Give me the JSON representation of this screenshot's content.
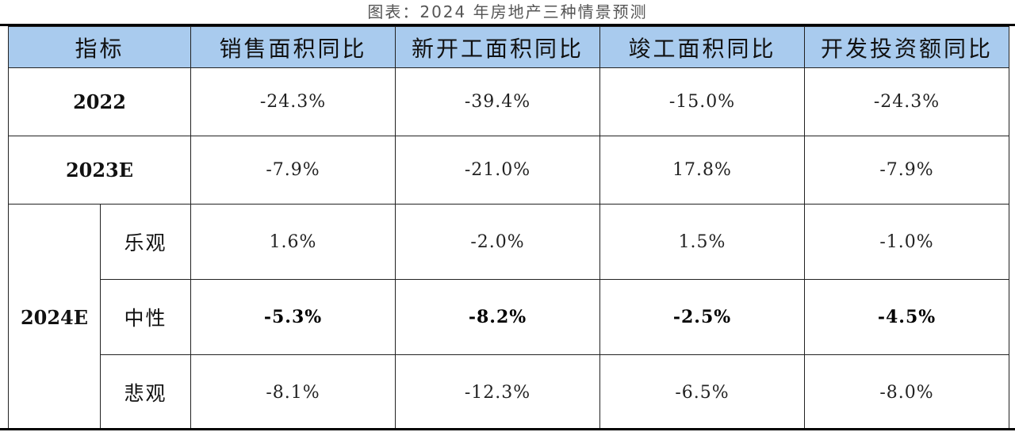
{
  "caption": "图表：2024 年房地产三种情景预测",
  "header": {
    "indicator": "指标",
    "columns": [
      "销售面积同比",
      "新开工面积同比",
      "竣工面积同比",
      "开发投资额同比"
    ]
  },
  "rows": [
    {
      "year": "2022",
      "values": [
        "-24.3%",
        "-39.4%",
        "-15.0%",
        "-24.3%"
      ]
    },
    {
      "year": "2023E",
      "values": [
        "-7.9%",
        "-21.0%",
        "17.8%",
        "-7.9%"
      ]
    }
  ],
  "forecast": {
    "year": "2024E",
    "scenarios": [
      {
        "name": "乐观",
        "values": [
          "1.6%",
          "-2.0%",
          "1.5%",
          "-1.0%"
        ]
      },
      {
        "name": "中性",
        "values": [
          "-5.3%",
          "-8.2%",
          "-2.5%",
          "-4.5%"
        ]
      },
      {
        "name": "悲观",
        "values": [
          "-8.1%",
          "-12.3%",
          "-6.5%",
          "-8.0%"
        ]
      }
    ]
  }
}
